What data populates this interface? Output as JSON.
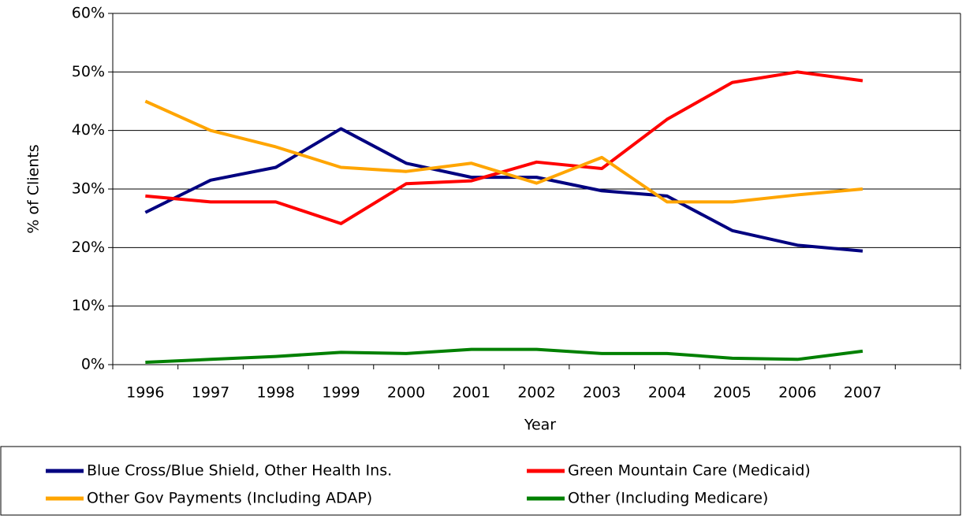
{
  "chart_data": {
    "type": "line",
    "xlabel": "Year",
    "ylabel": "% of Clients",
    "categories": [
      "1996",
      "1997",
      "1998",
      "1999",
      "2000",
      "2001",
      "2002",
      "2003",
      "2004",
      "2005",
      "2006",
      "2007",
      null
    ],
    "series": [
      {
        "name": "Blue Cross/Blue Shield, Other Health Ins.",
        "color": "#000080",
        "values": [
          26,
          31.5,
          33.7,
          40.3,
          34.4,
          32,
          32,
          29.7,
          28.8,
          22.9,
          20.4,
          19.4,
          null
        ]
      },
      {
        "name": "Green Mountain Care (Medicaid)",
        "color": "#ff0000",
        "values": [
          28.8,
          27.8,
          27.8,
          24.1,
          30.9,
          31.4,
          34.6,
          33.5,
          41.9,
          48.2,
          50,
          48.5,
          null
        ]
      },
      {
        "name": "Other Gov Payments (Including ADAP)",
        "color": "#ffa500",
        "values": [
          45,
          40,
          37.2,
          33.7,
          33,
          34.4,
          31,
          35.4,
          27.8,
          27.8,
          29,
          30,
          null
        ]
      },
      {
        "name": "Other (Including Medicare)",
        "color": "#008000",
        "values": [
          0.4,
          0.9,
          1.4,
          2.1,
          1.9,
          2.6,
          2.6,
          1.9,
          1.9,
          1.1,
          0.9,
          2.3,
          null
        ]
      }
    ],
    "ylim": [
      0,
      60
    ],
    "yticks": [
      {
        "value": 0,
        "label": "0%"
      },
      {
        "value": 10,
        "label": "10%"
      },
      {
        "value": 20,
        "label": "20%"
      },
      {
        "value": 30,
        "label": "30%"
      },
      {
        "value": 40,
        "label": "40%"
      },
      {
        "value": 50,
        "label": "50%"
      },
      {
        "value": 60,
        "label": "60%"
      }
    ],
    "grid": true
  }
}
